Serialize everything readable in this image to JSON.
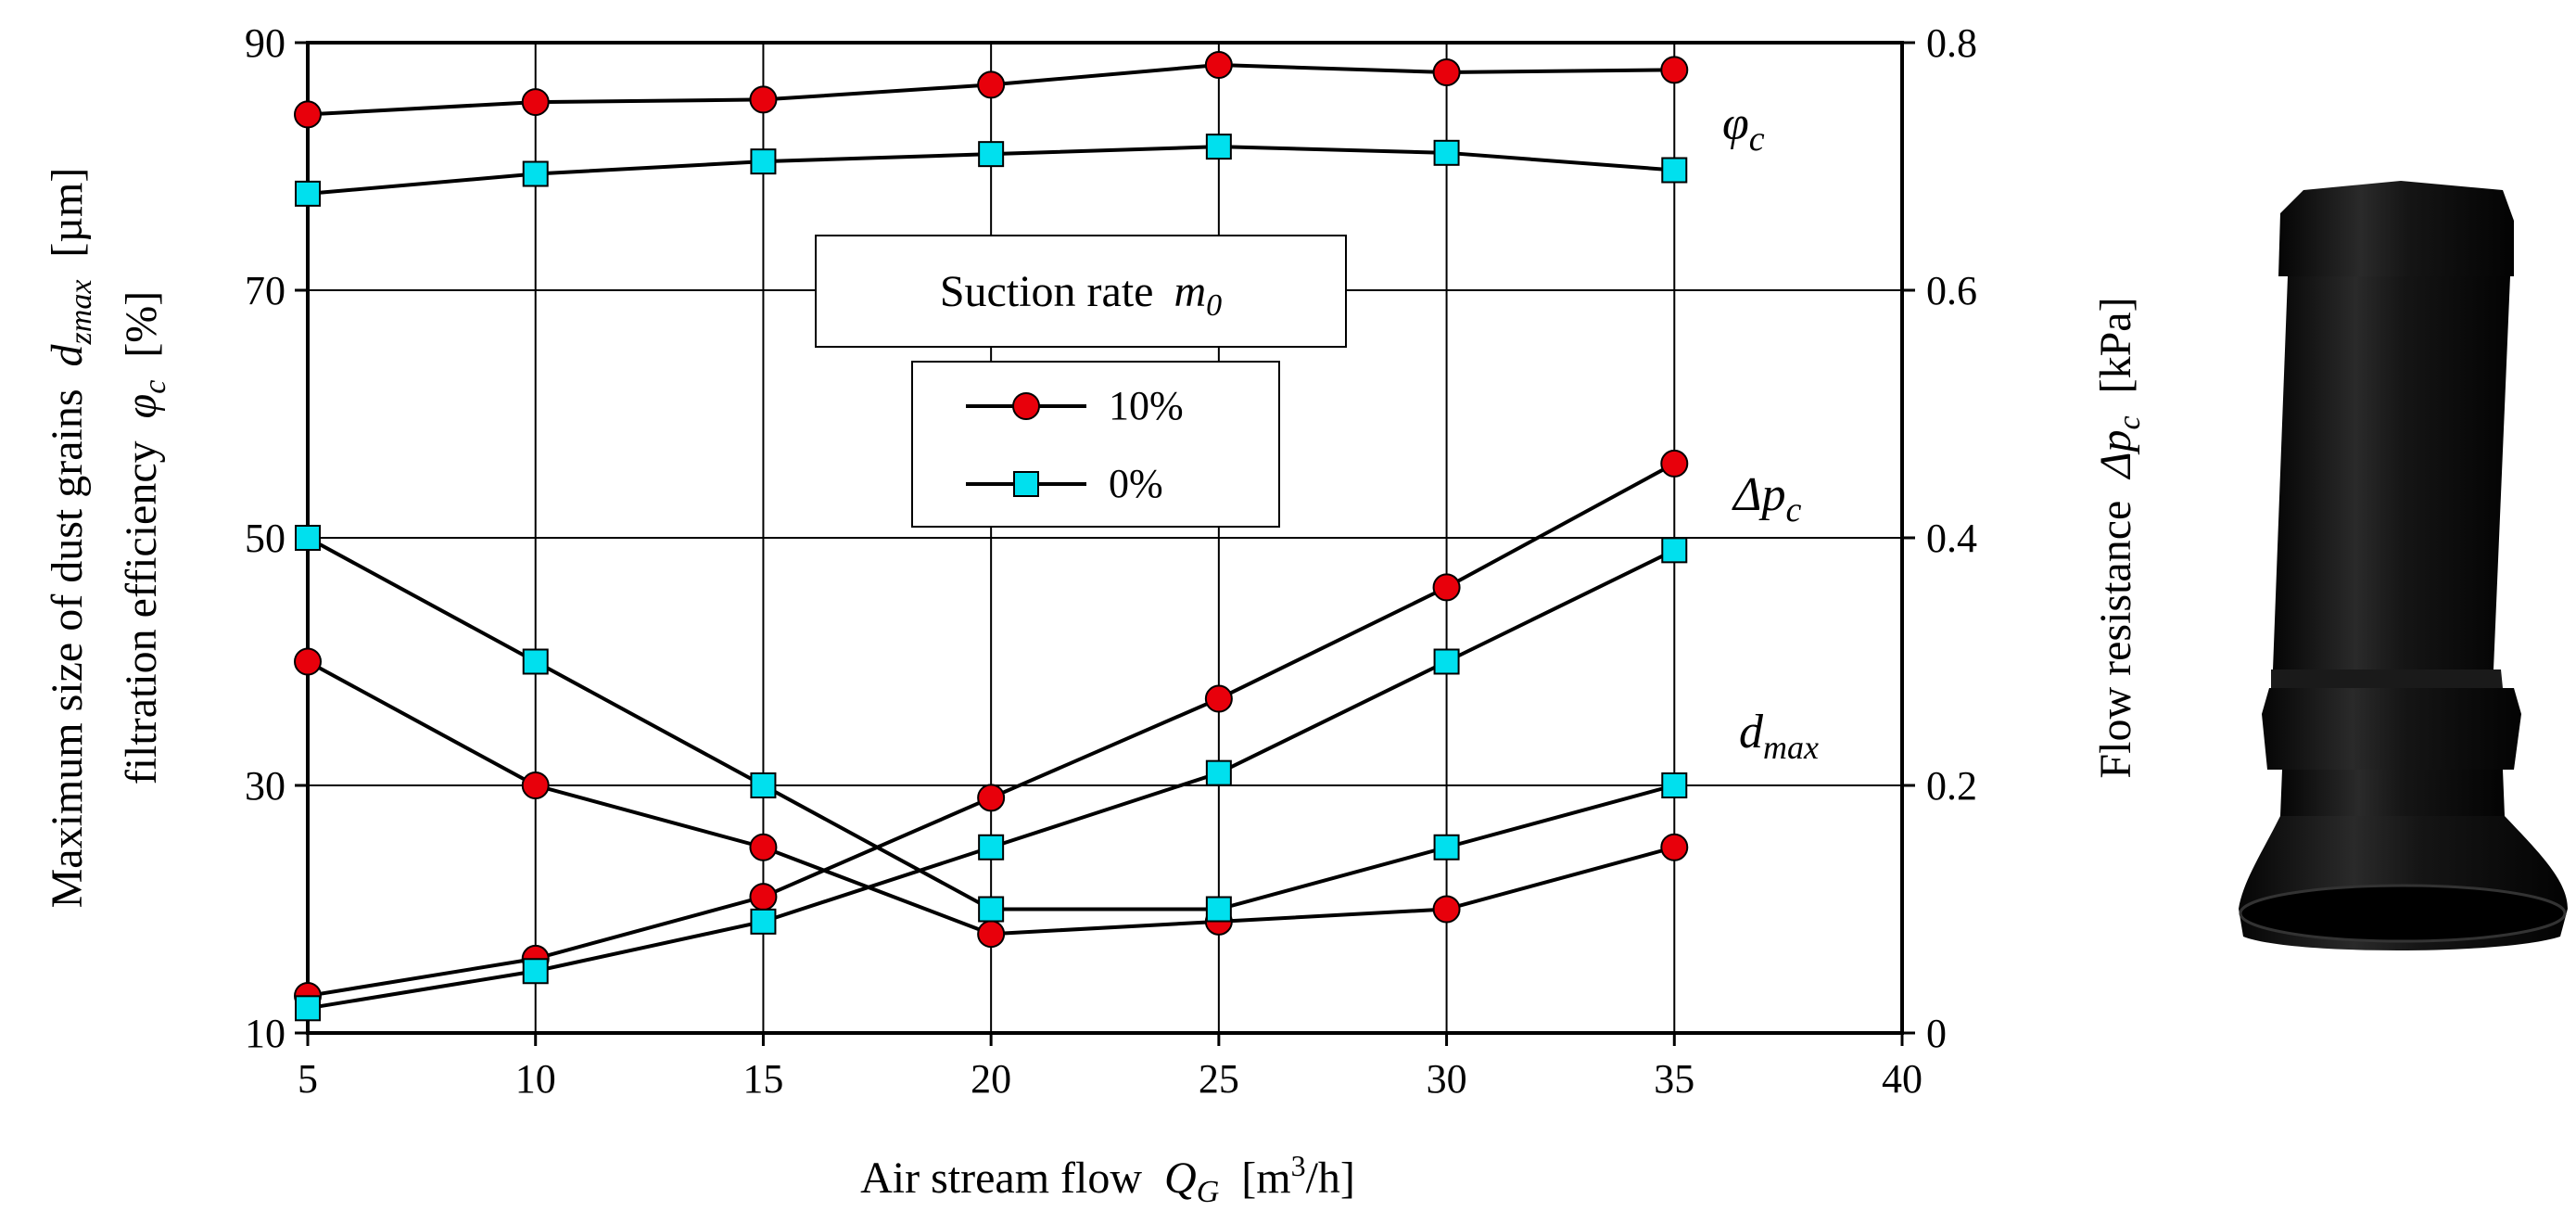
{
  "chart_data": {
    "type": "line",
    "x_axis": {
      "label_main": "Air stream flow",
      "label_symbol": "Q",
      "label_symbol_sub": "G",
      "label_unit_open": "[m",
      "label_unit_sup": "3",
      "label_unit_close": "/h]",
      "range": [
        5,
        40
      ],
      "ticks": [
        5,
        10,
        15,
        20,
        25,
        30,
        35,
        40
      ]
    },
    "y_left_axis": {
      "label_line1_main": "Maximum size of dust grains",
      "label_line1_symbol": "d",
      "label_line1_sub": "zmax",
      "label_line1_unit": "[µm]",
      "label_line2_main": "filtration efficiency",
      "label_line2_symbol": "φ",
      "label_line2_sub": "c",
      "label_line2_unit": "[%]",
      "range": [
        10,
        90
      ],
      "ticks": [
        10,
        30,
        50,
        70,
        90
      ]
    },
    "y_right_axis": {
      "label_main": "Flow resistance",
      "label_symbol": "Δp",
      "label_sub": "c",
      "label_unit": "[kPa]",
      "range": [
        0,
        0.8
      ],
      "ticks": [
        "0",
        "0.2",
        "0.4",
        "0.6",
        "0.8"
      ]
    },
    "grid": true,
    "legend": {
      "title_main": "Suction rate",
      "title_symbol": "m",
      "title_sub": "0",
      "placement": "center-top",
      "entries": [
        {
          "label": "10%",
          "marker": "circle",
          "color": "#e8000b"
        },
        {
          "label": "0%",
          "marker": "square",
          "color": "#00e0ee"
        }
      ]
    },
    "curve_labels": {
      "phi_symbol": "φ",
      "phi_sub": "c",
      "dp_symbol": "Δp",
      "dp_sub": "c",
      "dmax_symbol": "d",
      "dmax_sub": "max"
    },
    "x": [
      5,
      10,
      15,
      20,
      25,
      30,
      35
    ],
    "series": [
      {
        "name": "filtration efficiency, 10%",
        "axis": "left",
        "marker": "circle",
        "values": [
          84.2,
          85.2,
          85.4,
          86.6,
          88.2,
          87.6,
          87.8
        ]
      },
      {
        "name": "filtration efficiency, 0%",
        "axis": "left",
        "marker": "square",
        "values": [
          77.8,
          79.4,
          80.4,
          81.0,
          81.6,
          81.1,
          79.7
        ]
      },
      {
        "name": "flow resistance, 10%",
        "axis": "right",
        "marker": "circle",
        "values": [
          0.03,
          0.06,
          0.11,
          0.19,
          0.27,
          0.36,
          0.46
        ]
      },
      {
        "name": "flow resistance, 0%",
        "axis": "right",
        "marker": "square",
        "values": [
          0.02,
          0.05,
          0.09,
          0.15,
          0.21,
          0.3,
          0.39
        ]
      },
      {
        "name": "max grain size, 10%",
        "axis": "left",
        "marker": "circle",
        "values": [
          40,
          30,
          25,
          18,
          19,
          20,
          25
        ]
      },
      {
        "name": "max grain size, 0%",
        "axis": "left",
        "marker": "square",
        "values": [
          50,
          40,
          30,
          20,
          20,
          25,
          30
        ]
      }
    ]
  },
  "colors": {
    "circle_fill": "#e8000b",
    "square_fill": "#00e0ee",
    "line": "#000000",
    "grid": "#000000"
  },
  "photo": {
    "subject": "black-rubber-filter-cartridge"
  }
}
